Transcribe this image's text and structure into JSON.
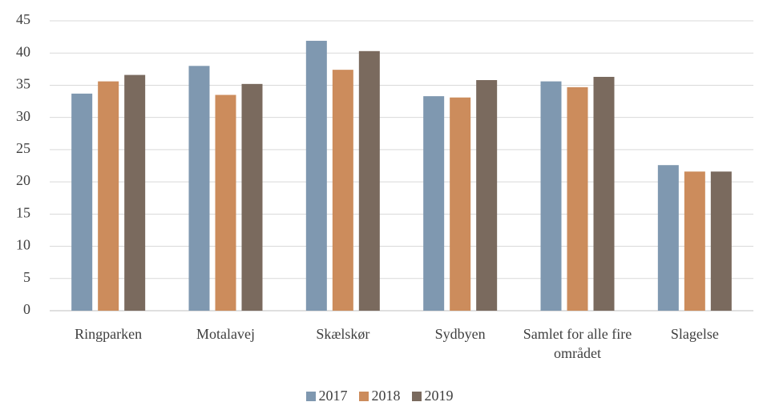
{
  "chart_data": {
    "type": "bar",
    "categories": [
      "Ringparken",
      "Motalavej",
      "Skælskør",
      "Sydbyen",
      "Samlet for alle fire området",
      "Slagelse"
    ],
    "series": [
      {
        "name": "2017",
        "color": "#7f98b0",
        "values": [
          33.7,
          38.0,
          41.9,
          33.3,
          35.6,
          22.6
        ]
      },
      {
        "name": "2018",
        "color": "#cc8c5c",
        "values": [
          35.6,
          33.5,
          37.4,
          33.1,
          34.7,
          21.6
        ]
      },
      {
        "name": "2019",
        "color": "#7a6a5e",
        "values": [
          36.6,
          35.2,
          40.3,
          35.8,
          36.3,
          21.6
        ]
      }
    ],
    "ylim": [
      0,
      45
    ],
    "yticks": [
      0,
      5,
      10,
      15,
      20,
      25,
      30,
      35,
      40,
      45
    ],
    "grid": true,
    "legend": "bottom"
  }
}
